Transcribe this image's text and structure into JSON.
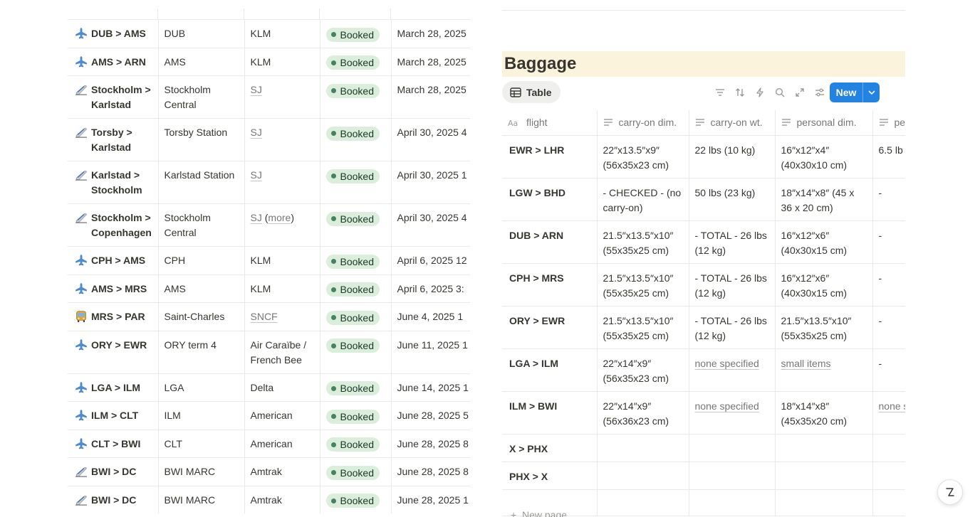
{
  "trips": [
    {
      "icon": "airplane-icon",
      "route": "DUB > AMS",
      "location": "DUB",
      "carrier": "KLM",
      "carrier_link": false,
      "carrier_more": "",
      "status": "Booked",
      "date": "March 28, 2025"
    },
    {
      "icon": "airplane-icon",
      "route": "AMS > ARN",
      "location": "AMS",
      "carrier": "KLM",
      "carrier_link": false,
      "carrier_more": "",
      "status": "Booked",
      "date": "March 28, 2025"
    },
    {
      "icon": "train-icon",
      "route": "Stockholm > Karlstad",
      "location": "Stockholm Central",
      "carrier": "SJ",
      "carrier_link": true,
      "carrier_more": "",
      "status": "Booked",
      "date": "March 28, 2025"
    },
    {
      "icon": "train-icon",
      "route": "Torsby > Karlstad",
      "location": "Torsby Station",
      "carrier": "SJ",
      "carrier_link": true,
      "carrier_more": "",
      "status": "Booked",
      "date": "April 30, 2025 4"
    },
    {
      "icon": "train-icon",
      "route": "Karlstad > Stockholm",
      "location": "Karlstad Station",
      "carrier": "SJ",
      "carrier_link": true,
      "carrier_more": "",
      "status": "Booked",
      "date": "April 30, 2025 1"
    },
    {
      "icon": "train-icon",
      "route": "Stockholm > Copenhagen",
      "location": "Stockholm Central",
      "carrier": "SJ",
      "carrier_link": true,
      "carrier_more": "more",
      "status": "Booked",
      "date": "April 30, 2025 4"
    },
    {
      "icon": "airplane-icon",
      "route": "CPH > AMS",
      "location": "CPH",
      "carrier": "KLM",
      "carrier_link": false,
      "carrier_more": "",
      "status": "Booked",
      "date": "April 6, 2025 12"
    },
    {
      "icon": "airplane-icon",
      "route": "AMS > MRS",
      "location": "AMS",
      "carrier": "KLM",
      "carrier_link": false,
      "carrier_more": "",
      "status": "Booked",
      "date": "April 6, 2025 3:"
    },
    {
      "icon": "bus-icon",
      "route": "MRS > PAR",
      "location": "Saint-Charles",
      "carrier": "SNCF",
      "carrier_link": true,
      "carrier_more": "",
      "status": "Booked",
      "date": "June 4, 2025 1"
    },
    {
      "icon": "airplane-icon",
      "route": "ORY > EWR",
      "location": "ORY term 4",
      "carrier": "Air Caraïbe / French Bee",
      "carrier_link": false,
      "carrier_more": "",
      "status": "Booked",
      "date": "June 11, 2025 1"
    },
    {
      "icon": "airplane-icon",
      "route": "LGA > ILM",
      "location": "LGA",
      "carrier": "Delta",
      "carrier_link": false,
      "carrier_more": "",
      "status": "Booked",
      "date": "June 14, 2025 1"
    },
    {
      "icon": "airplane-icon",
      "route": "ILM > CLT",
      "location": "ILM",
      "carrier": "American",
      "carrier_link": false,
      "carrier_more": "",
      "status": "Booked",
      "date": "June 28, 2025 5"
    },
    {
      "icon": "airplane-icon",
      "route": "CLT > BWI",
      "location": "CLT",
      "carrier": "American",
      "carrier_link": false,
      "carrier_more": "",
      "status": "Booked",
      "date": "June 28, 2025 8"
    },
    {
      "icon": "train-icon",
      "route": "BWI > DC",
      "location": "BWI MARC",
      "carrier": "Amtrak",
      "carrier_link": false,
      "carrier_more": "",
      "status": "Booked",
      "date": "June 28, 2025 8"
    },
    {
      "icon": "train-icon",
      "route": "BWI > DC",
      "location": "BWI MARC",
      "carrier": "Amtrak",
      "carrier_link": false,
      "carrier_more": "",
      "status": "Booked",
      "date": "June 28, 2025 1"
    }
  ],
  "baggage": {
    "title": "Baggage",
    "view_tab": "Table",
    "new_button": "New",
    "columns": [
      "flight",
      "carry-on dim.",
      "carry-on wt.",
      "personal dim.",
      "pe"
    ],
    "rows": [
      {
        "flight": "EWR > LHR",
        "carry_dim": "22″x13.5″x9″ (56x35x23 cm)",
        "carry_wt": "22 lbs (10 kg)",
        "personal_dim": "16″x12″x4″ (40x30x10 cm)",
        "personal_wt": "6.5 lb"
      },
      {
        "flight": "LGW > BHD",
        "carry_dim": "- CHECKED - (no carry-on)",
        "carry_wt": "50 lbs (23 kg)",
        "personal_dim": "18″x14″x8″ (45 x 36 x 20 cm)",
        "personal_wt": "-"
      },
      {
        "flight": "DUB > ARN",
        "carry_dim": "21.5″x13.5″x10″ (55x35x25 cm)",
        "carry_wt": "- TOTAL - 26 lbs (12 kg)",
        "personal_dim": "16″x12″x6″ (40x30x15 cm)",
        "personal_wt": "-"
      },
      {
        "flight": "CPH > MRS",
        "carry_dim": "21.5″x13.5″x10″ (55x35x25 cm)",
        "carry_wt": "- TOTAL - 26 lbs (12 kg)",
        "personal_dim": "16″x12″x6″ (40x30x15 cm)",
        "personal_wt": "-"
      },
      {
        "flight": "ORY > EWR",
        "carry_dim": "21.5″x13.5″x10″ (55x35x25 cm)",
        "carry_wt": "- TOTAL - 26 lbs (12 kg)",
        "personal_dim": "21.5″x13.5″x10″ (55x35x25 cm)",
        "personal_wt": "-"
      },
      {
        "flight": "LGA > ILM",
        "carry_dim": "22″x14″x9″ (56x35x23 cm)",
        "carry_wt": "none specified",
        "personal_dim": "small items",
        "personal_wt": "-"
      },
      {
        "flight": "ILM > BWI",
        "carry_dim": "22″x14″x9″ (56x36x23 cm)",
        "carry_wt": "none specified",
        "personal_dim": "18″x14″x8″ (45x35x20 cm)",
        "personal_wt": "none s"
      },
      {
        "flight": "X > PHX",
        "carry_dim": "",
        "carry_wt": "",
        "personal_dim": "",
        "personal_wt": ""
      },
      {
        "flight": "PHX > X",
        "carry_dim": "",
        "carry_wt": "",
        "personal_dim": "",
        "personal_wt": ""
      },
      {
        "flight": "",
        "carry_dim": "",
        "carry_wt": "",
        "personal_dim": "",
        "personal_wt": ""
      }
    ],
    "underlined_values": [
      "none specified",
      "small items",
      "none s"
    ],
    "new_page_label": "New page"
  },
  "colors": {
    "badge_bg": "#dbeddb",
    "badge_dot": "#448361",
    "title_bg": "#fbf3db",
    "accent": "#2383e2"
  }
}
